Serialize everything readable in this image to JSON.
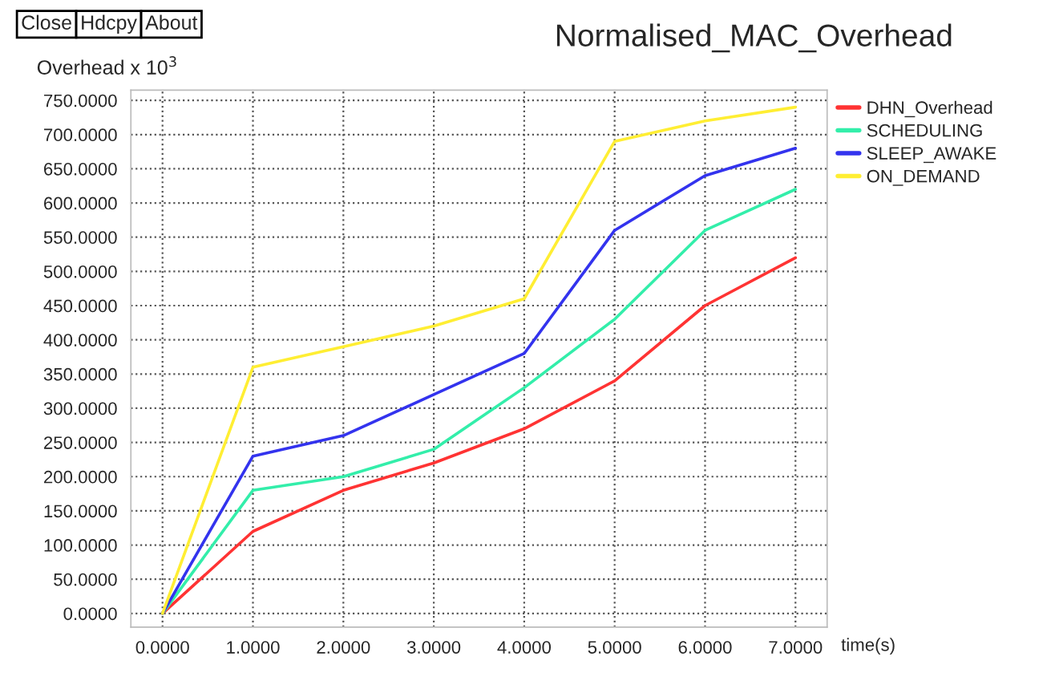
{
  "chart_data": {
    "type": "line",
    "title": "Normalised_MAC_Overhead",
    "ylabel": "Overhead x 10$^{3}$",
    "xlabel": "time(s)",
    "annotations": [
      "Close",
      "Hdcpy",
      "About"
    ],
    "x": [
      0,
      1,
      2,
      3,
      4,
      5,
      6,
      7
    ],
    "series": [
      {
        "name": "DHN_Overhead",
        "color": "#ff3333",
        "values": [
          0,
          120,
          180,
          220,
          270,
          340,
          450,
          520
        ]
      },
      {
        "name": "SCHEDULING",
        "color": "#33eeaa",
        "values": [
          0,
          180,
          200,
          240,
          330,
          430,
          560,
          620
        ]
      },
      {
        "name": "SLEEP_AWAKE",
        "color": "#3333ee",
        "values": [
          0,
          230,
          260,
          320,
          380,
          560,
          640,
          680
        ]
      },
      {
        "name": "ON_DEMAND",
        "color": "#ffee33",
        "values": [
          0,
          360,
          390,
          420,
          460,
          690,
          720,
          740
        ]
      }
    ],
    "xlim": [
      -0.35,
      7.35
    ],
    "ylim": [
      -20,
      765
    ],
    "xticks": [
      {
        "value": 0,
        "label": "0.0000"
      },
      {
        "value": 1,
        "label": "1.0000"
      },
      {
        "value": 2,
        "label": "2.0000"
      },
      {
        "value": 3,
        "label": "3.0000"
      },
      {
        "value": 4,
        "label": "4.0000"
      },
      {
        "value": 5,
        "label": "5.0000"
      },
      {
        "value": 6,
        "label": "6.0000"
      },
      {
        "value": 7,
        "label": "7.0000"
      }
    ],
    "yticks": [
      {
        "value": 0,
        "label": "0.0000"
      },
      {
        "value": 50,
        "label": "50.0000"
      },
      {
        "value": 100,
        "label": "100.0000"
      },
      {
        "value": 150,
        "label": "150.0000"
      },
      {
        "value": 200,
        "label": "200.0000"
      },
      {
        "value": 250,
        "label": "250.0000"
      },
      {
        "value": 300,
        "label": "300.0000"
      },
      {
        "value": 350,
        "label": "350.0000"
      },
      {
        "value": 400,
        "label": "400.0000"
      },
      {
        "value": 450,
        "label": "450.0000"
      },
      {
        "value": 500,
        "label": "500.0000"
      },
      {
        "value": 550,
        "label": "550.0000"
      },
      {
        "value": 600,
        "label": "600.0000"
      },
      {
        "value": 650,
        "label": "650.0000"
      },
      {
        "value": 700,
        "label": "700.0000"
      },
      {
        "value": 750,
        "label": "750.0000"
      }
    ],
    "grid": true,
    "legend": "top right",
    "marker": "none",
    "line_style": "solid"
  }
}
